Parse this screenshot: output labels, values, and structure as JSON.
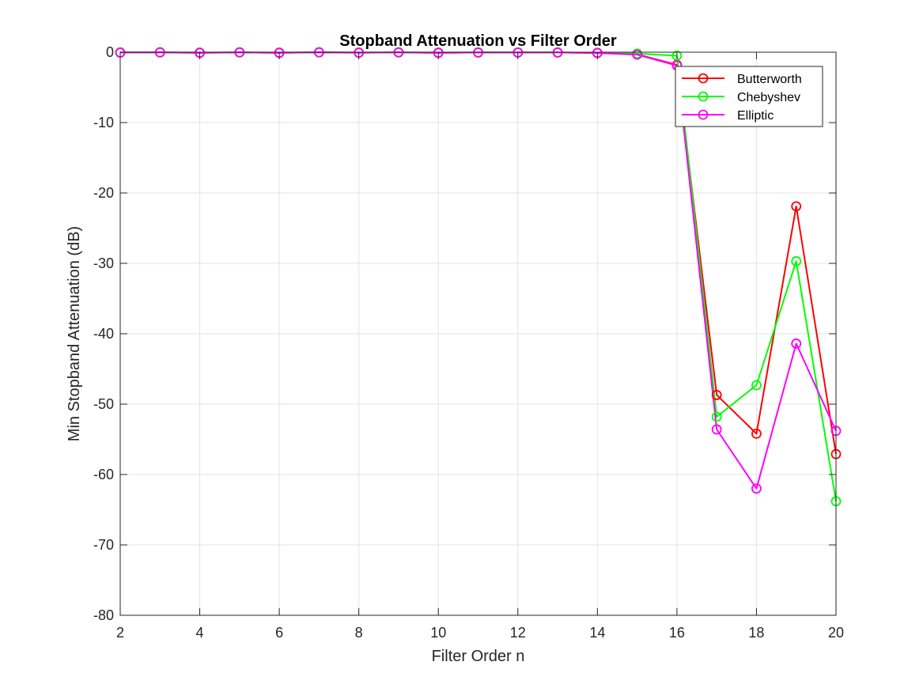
{
  "chart_data": {
    "type": "line",
    "title": "Stopband Attenuation vs Filter Order",
    "xlabel": "Filter Order n",
    "ylabel": "Min Stopband Attenuation (dB)",
    "xlim": [
      2,
      20
    ],
    "ylim": [
      -80,
      0
    ],
    "xticks": [
      "2",
      "4",
      "6",
      "8",
      "10",
      "12",
      "14",
      "16",
      "18",
      "20"
    ],
    "yticks": [
      "0",
      "-10",
      "-20",
      "-30",
      "-40",
      "-50",
      "-60",
      "-70",
      "-80"
    ],
    "grid": true,
    "legend_position": "top-right",
    "x": [
      2,
      3,
      4,
      5,
      6,
      7,
      8,
      9,
      10,
      11,
      12,
      13,
      14,
      15,
      16,
      17,
      18,
      19,
      20
    ],
    "series": [
      {
        "name": "Butterworth",
        "color": "#ff0000",
        "marker": "circle",
        "values": [
          -0.05,
          -0.02,
          -0.1,
          -0.03,
          -0.1,
          -0.02,
          -0.08,
          -0.03,
          -0.1,
          -0.05,
          -0.05,
          -0.05,
          -0.12,
          -0.3,
          -1.8,
          -48.7,
          -54.2,
          -21.9,
          -57.1
        ]
      },
      {
        "name": "Chebyshev",
        "color": "#00ff00",
        "marker": "circle",
        "values": [
          -0.03,
          -0.01,
          -0.05,
          -0.02,
          -0.05,
          -0.01,
          -0.05,
          -0.02,
          -0.05,
          -0.03,
          -0.03,
          -0.03,
          -0.08,
          -0.2,
          -0.5,
          -51.8,
          -47.3,
          -29.7,
          -63.8
        ]
      },
      {
        "name": "Elliptic",
        "color": "#ff00ff",
        "marker": "circle",
        "values": [
          -0.05,
          -0.02,
          -0.08,
          -0.02,
          -0.08,
          -0.01,
          -0.06,
          -0.02,
          -0.08,
          -0.04,
          -0.04,
          -0.04,
          -0.1,
          -0.35,
          -1.9,
          -53.6,
          -62.0,
          -41.4,
          -53.8
        ]
      }
    ]
  }
}
